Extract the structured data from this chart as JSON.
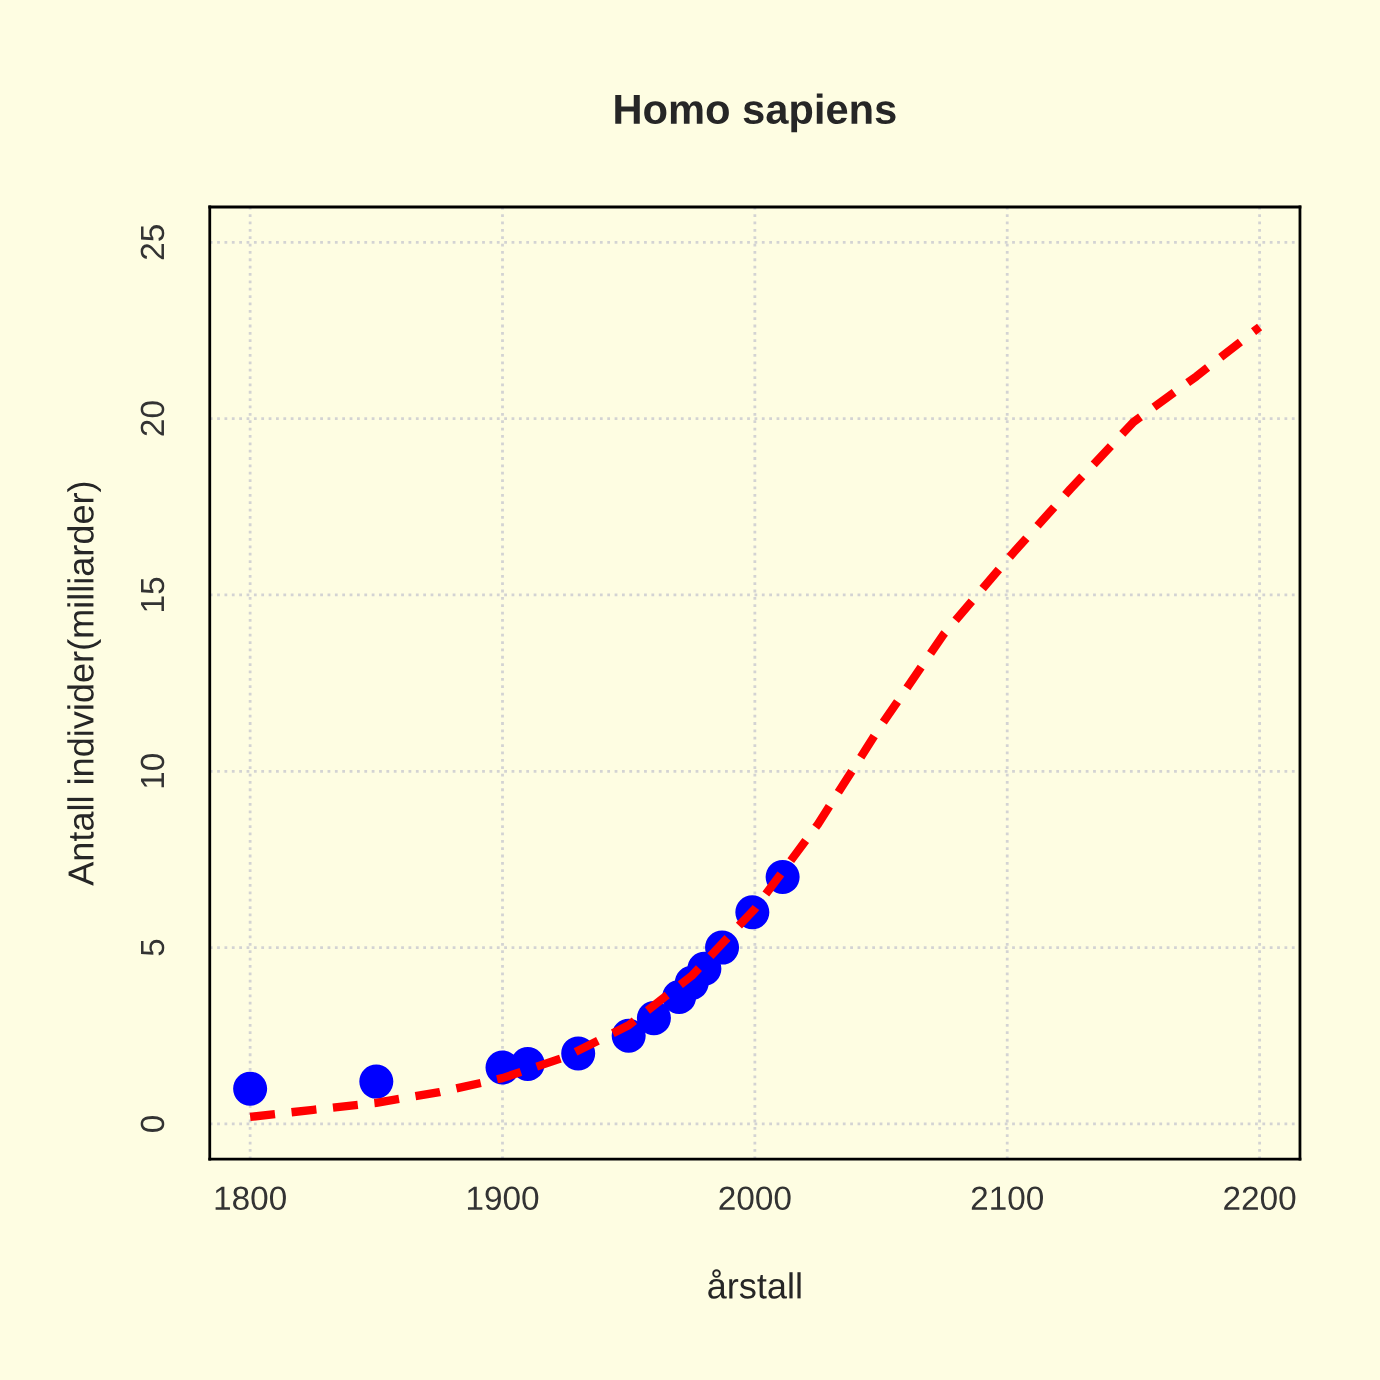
{
  "chart_data": {
    "type": "scatter",
    "title": "Homo sapiens",
    "xlabel": "årstall",
    "ylabel": "Antall individer(milliarder)",
    "xlim": [
      1784,
      2216
    ],
    "ylim": [
      -1,
      26
    ],
    "xticks": [
      1800,
      1900,
      2000,
      2100,
      2200
    ],
    "yticks": [
      0,
      5,
      10,
      15,
      20,
      25
    ],
    "grid": true,
    "legend": false,
    "series": [
      {
        "color": "#0000ff",
        "marker": "circle",
        "x": [
          1800,
          1850,
          1900,
          1910,
          1930,
          1950,
          1960,
          1970,
          1975,
          1980,
          1987,
          1999,
          2011
        ],
        "values": [
          1.0,
          1.2,
          1.6,
          1.7,
          2.0,
          2.5,
          3.0,
          3.6,
          4.0,
          4.4,
          5.0,
          6.0,
          7.0
        ]
      },
      {
        "type": "line",
        "color": "#ff0000",
        "line_style": "dashed",
        "x": [
          1800,
          1825,
          1850,
          1875,
          1900,
          1925,
          1950,
          1975,
          2000,
          2025,
          2050,
          2075,
          2100,
          2125,
          2150,
          2175,
          2200
        ],
        "values": [
          0.2,
          0.4,
          0.6,
          0.9,
          1.3,
          1.9,
          2.8,
          4.2,
          6.1,
          8.5,
          11.3,
          13.9,
          16.0,
          18.0,
          19.9,
          21.2,
          22.6
        ]
      }
    ]
  }
}
